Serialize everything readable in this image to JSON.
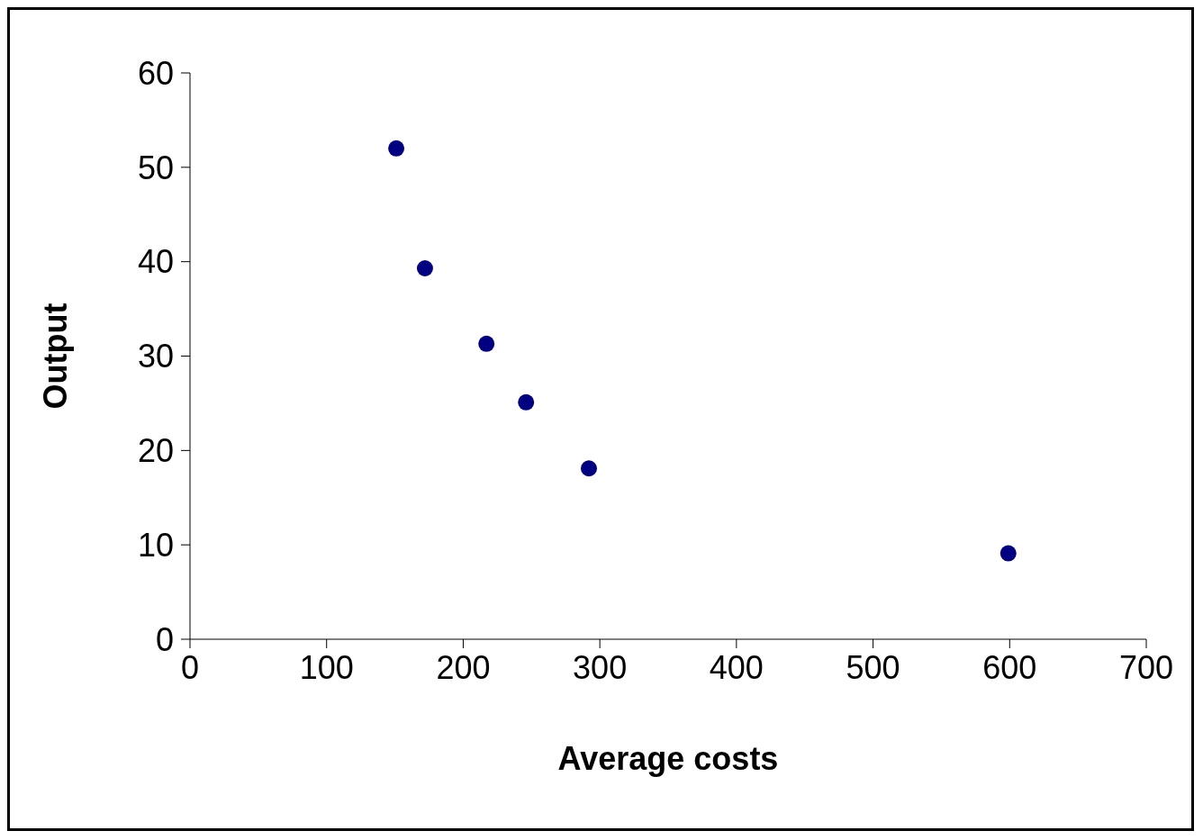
{
  "chart_data": {
    "type": "scatter",
    "xlabel": "Average costs",
    "ylabel": "Output",
    "x": [
      151,
      172,
      217,
      246,
      292,
      599
    ],
    "values": [
      52,
      39.3,
      31.3,
      25.1,
      18.1,
      9.1
    ],
    "color": "#000080",
    "marker": "circle",
    "xlim": [
      0,
      700
    ],
    "xticks": [
      0,
      100,
      200,
      300,
      400,
      500,
      600,
      700
    ],
    "ylim": [
      0,
      60
    ],
    "yticks": [
      0,
      10,
      20,
      30,
      40,
      50,
      60
    ],
    "grid": false,
    "legend": false
  }
}
